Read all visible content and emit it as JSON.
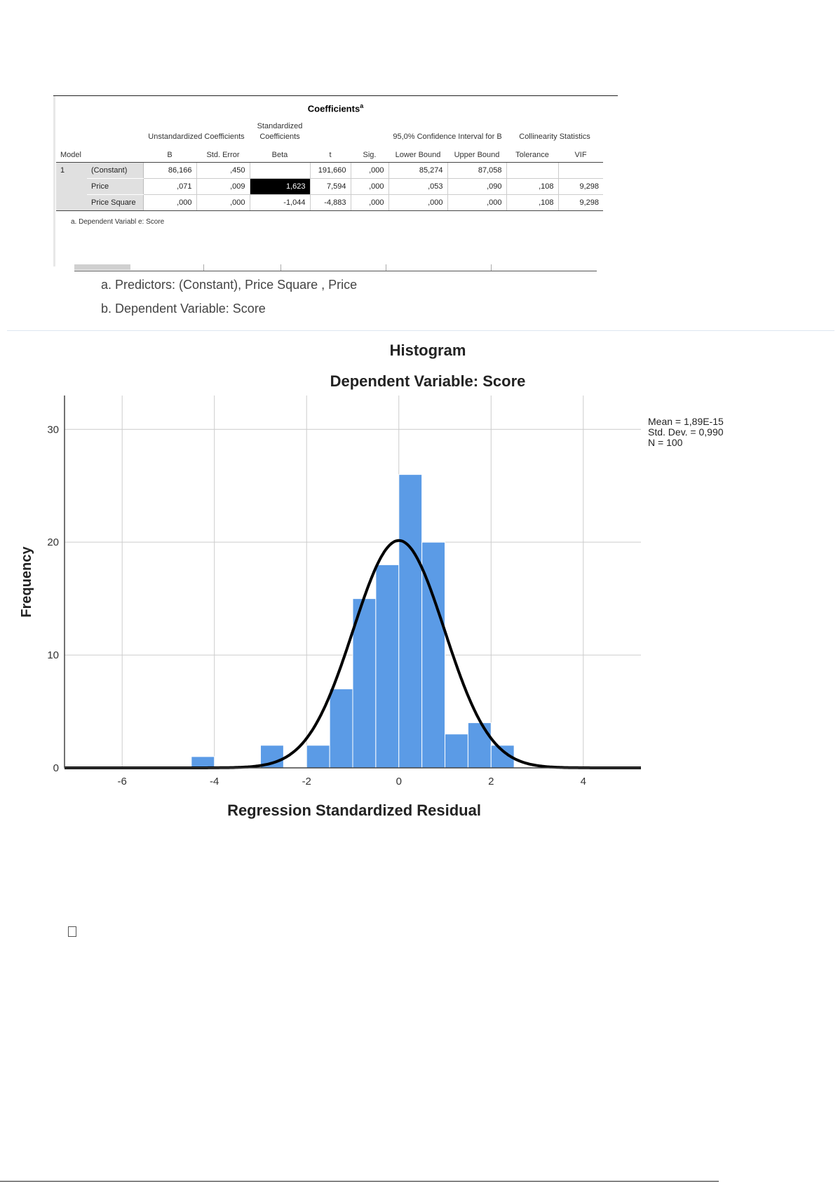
{
  "coefficients_table": {
    "title": "Coefficients",
    "title_superscript": "a",
    "group_headers": {
      "unstandardized": "Unstandardized Coefficients",
      "standardized": "Standardized Coefficients",
      "confidence": "95,0% Confidence Interval for B",
      "collinearity": "Collinearity Statistics"
    },
    "column_headers": {
      "model": "Model",
      "b": "B",
      "std_error": "Std. Error",
      "beta": "Beta",
      "t": "t",
      "sig": "Sig.",
      "lower": "Lower Bound",
      "upper": "Upper Bound",
      "tolerance": "Tolerance",
      "vif": "VIF"
    },
    "model_number": "1",
    "rows": [
      {
        "label": "(Constant)",
        "b": "86,166",
        "se": ",450",
        "beta": "",
        "t": "191,660",
        "sig": ",000",
        "lower": "85,274",
        "upper": "87,058",
        "tol": "",
        "vif": ""
      },
      {
        "label": "Price",
        "b": ",071",
        "se": ",009",
        "beta": "1,623",
        "t": "7,594",
        "sig": ",000",
        "lower": ",053",
        "upper": ",090",
        "tol": ",108",
        "vif": "9,298"
      },
      {
        "label": "Price Square",
        "b": ",000",
        "se": ",000",
        "beta": "-1,044",
        "t": "-4,883",
        "sig": ",000",
        "lower": ",000",
        "upper": ",000",
        "tol": ",108",
        "vif": "9,298"
      }
    ],
    "footnote": "a. Dependent Variabl e: Score"
  },
  "model_summary_notes": {
    "predictors": "a. Predictors: (Constant), Price Square , Price",
    "dependent": "b. Dependent Variable: Score"
  },
  "chart_data": {
    "type": "bar",
    "title": "Histogram",
    "subtitle": "Dependent Variable: Score",
    "xlabel": "Regression Standardized Residual",
    "ylabel": "Frequency",
    "xlim": [
      -7.25,
      5.25
    ],
    "ylim": [
      0,
      33
    ],
    "x_ticks": [
      "-6",
      "-4",
      "-2",
      "0",
      "2",
      "4"
    ],
    "y_ticks": [
      "0",
      "10",
      "20",
      "30"
    ],
    "grid": true,
    "bar_color": "#5b9be6",
    "bins": [
      {
        "x0": -4.5,
        "x1": -4.0,
        "count": 1
      },
      {
        "x0": -3.0,
        "x1": -2.5,
        "count": 2
      },
      {
        "x0": -2.0,
        "x1": -1.5,
        "count": 2
      },
      {
        "x0": -1.5,
        "x1": -1.0,
        "count": 7
      },
      {
        "x0": -1.0,
        "x1": -0.5,
        "count": 15
      },
      {
        "x0": -0.5,
        "x1": 0.0,
        "count": 18
      },
      {
        "x0": 0.0,
        "x1": 0.5,
        "count": 26
      },
      {
        "x0": 0.5,
        "x1": 1.0,
        "count": 20
      },
      {
        "x0": 1.0,
        "x1": 1.5,
        "count": 3
      },
      {
        "x0": 1.5,
        "x1": 2.0,
        "count": 4
      },
      {
        "x0": 2.0,
        "x1": 2.5,
        "count": 2
      }
    ],
    "normal_curve": {
      "mean": 0,
      "sd": 0.99,
      "n": 100,
      "bin_width": 0.5
    },
    "legend": [
      "Mean = 1,89E-15",
      "Std. Dev. = 0,990",
      "N = 100"
    ],
    "legend_position": "top-right"
  }
}
